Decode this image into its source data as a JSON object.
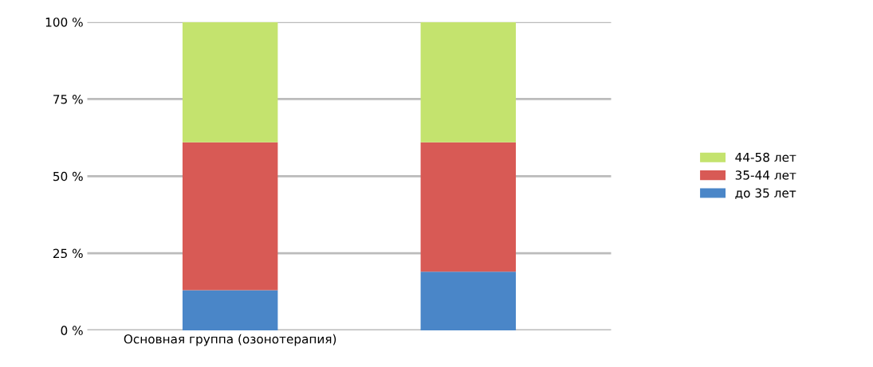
{
  "chart_data": {
    "type": "bar",
    "stacked": true,
    "categories": [
      "Основная группа (озонотерапия)",
      null
    ],
    "series": [
      {
        "name": "до 35 лет",
        "color": "#4a86c8",
        "values": [
          13,
          19
        ]
      },
      {
        "name": "35-44 лет",
        "color": "#d85a55",
        "values": [
          48,
          42
        ]
      },
      {
        "name": "44-58 лет",
        "color": "#c4e36e",
        "values": [
          39,
          39
        ]
      }
    ],
    "ylim": [
      0,
      100
    ],
    "yticks": [
      {
        "value": 0,
        "label": "0 %"
      },
      {
        "value": 25,
        "label": "25 %"
      },
      {
        "value": 50,
        "label": "50 %"
      },
      {
        "value": 75,
        "label": "75 %"
      },
      {
        "value": 100,
        "label": "100 %"
      }
    ],
    "grid": "y",
    "legend": "right"
  }
}
